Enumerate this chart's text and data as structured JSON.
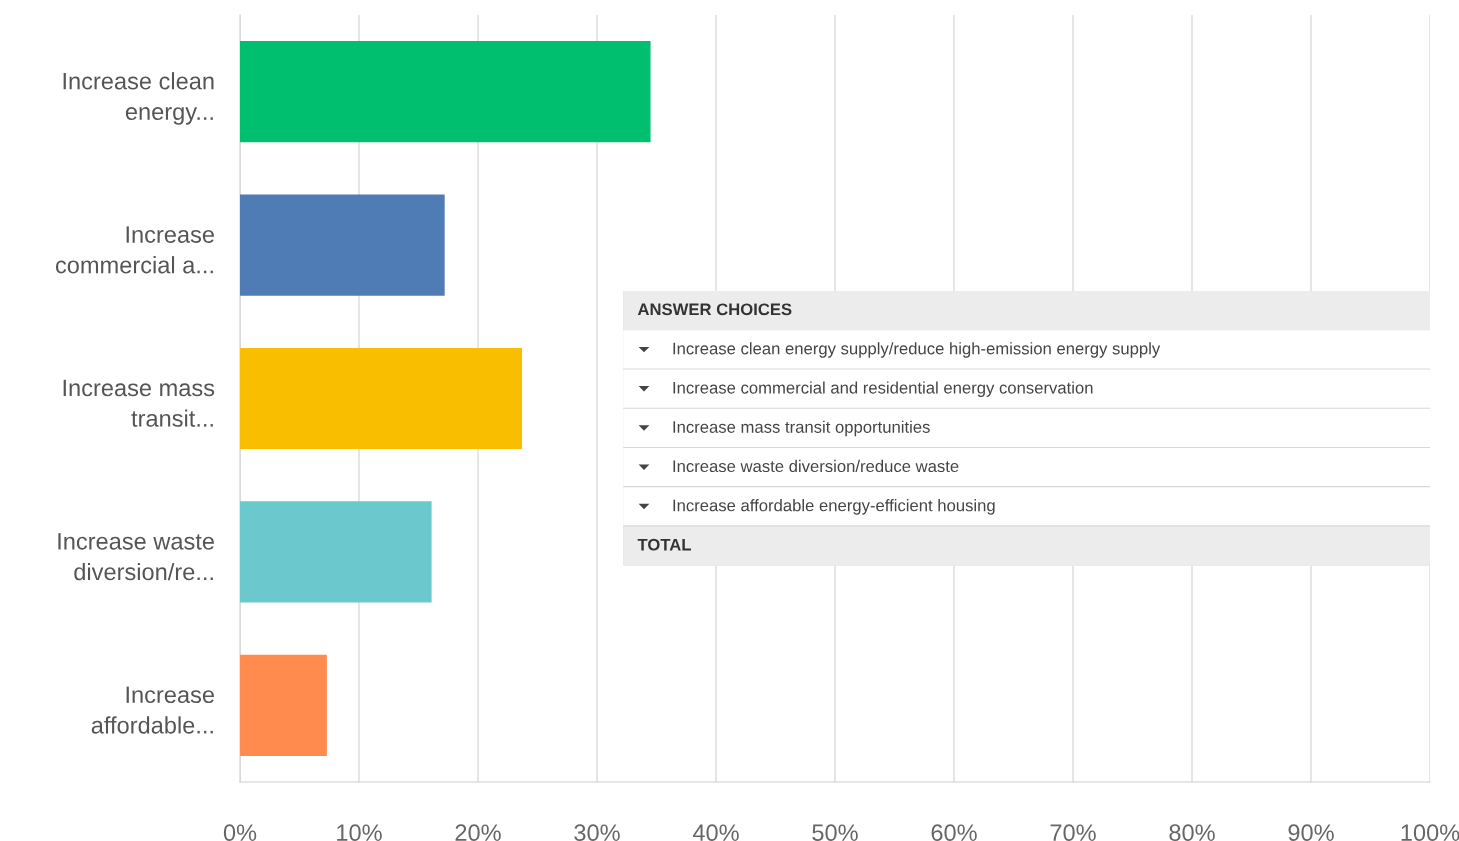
{
  "chart_data": {
    "type": "bar",
    "orientation": "horizontal",
    "categories": [
      "Increase clean\nenergy...",
      "Increase\ncommercial a...",
      "Increase mass\ntransit...",
      "Increase waste\ndiversion/re...",
      "Increase\naffordable..."
    ],
    "values": [
      34.5,
      17.2,
      23.7,
      16.1,
      7.3
    ],
    "colors": [
      "#00bf6f",
      "#507cb6",
      "#f9be00",
      "#6bc8cd",
      "#ff8b4f"
    ],
    "xlim": [
      0,
      100
    ],
    "xticks": [
      {
        "value": 0,
        "label": "0%"
      },
      {
        "value": 10,
        "label": "10%"
      },
      {
        "value": 20,
        "label": "20%"
      },
      {
        "value": 30,
        "label": "30%"
      },
      {
        "value": 40,
        "label": "40%"
      },
      {
        "value": 50,
        "label": "50%"
      },
      {
        "value": 60,
        "label": "60%"
      },
      {
        "value": 70,
        "label": "70%"
      },
      {
        "value": 80,
        "label": "80%"
      },
      {
        "value": 90,
        "label": "90%"
      },
      {
        "value": 100,
        "label": "100%"
      }
    ],
    "grid": "x",
    "legend": false,
    "annotations": [
      "ANSWER CHOICES",
      "Increase clean energy supply/reduce high-emission energy supply",
      "Increase commercial and residential energy conservation",
      "Increase mass transit opportunities",
      "Increase waste diversion/reduce waste",
      "Increase affordable energy-efficient housing",
      "TOTAL"
    ]
  }
}
